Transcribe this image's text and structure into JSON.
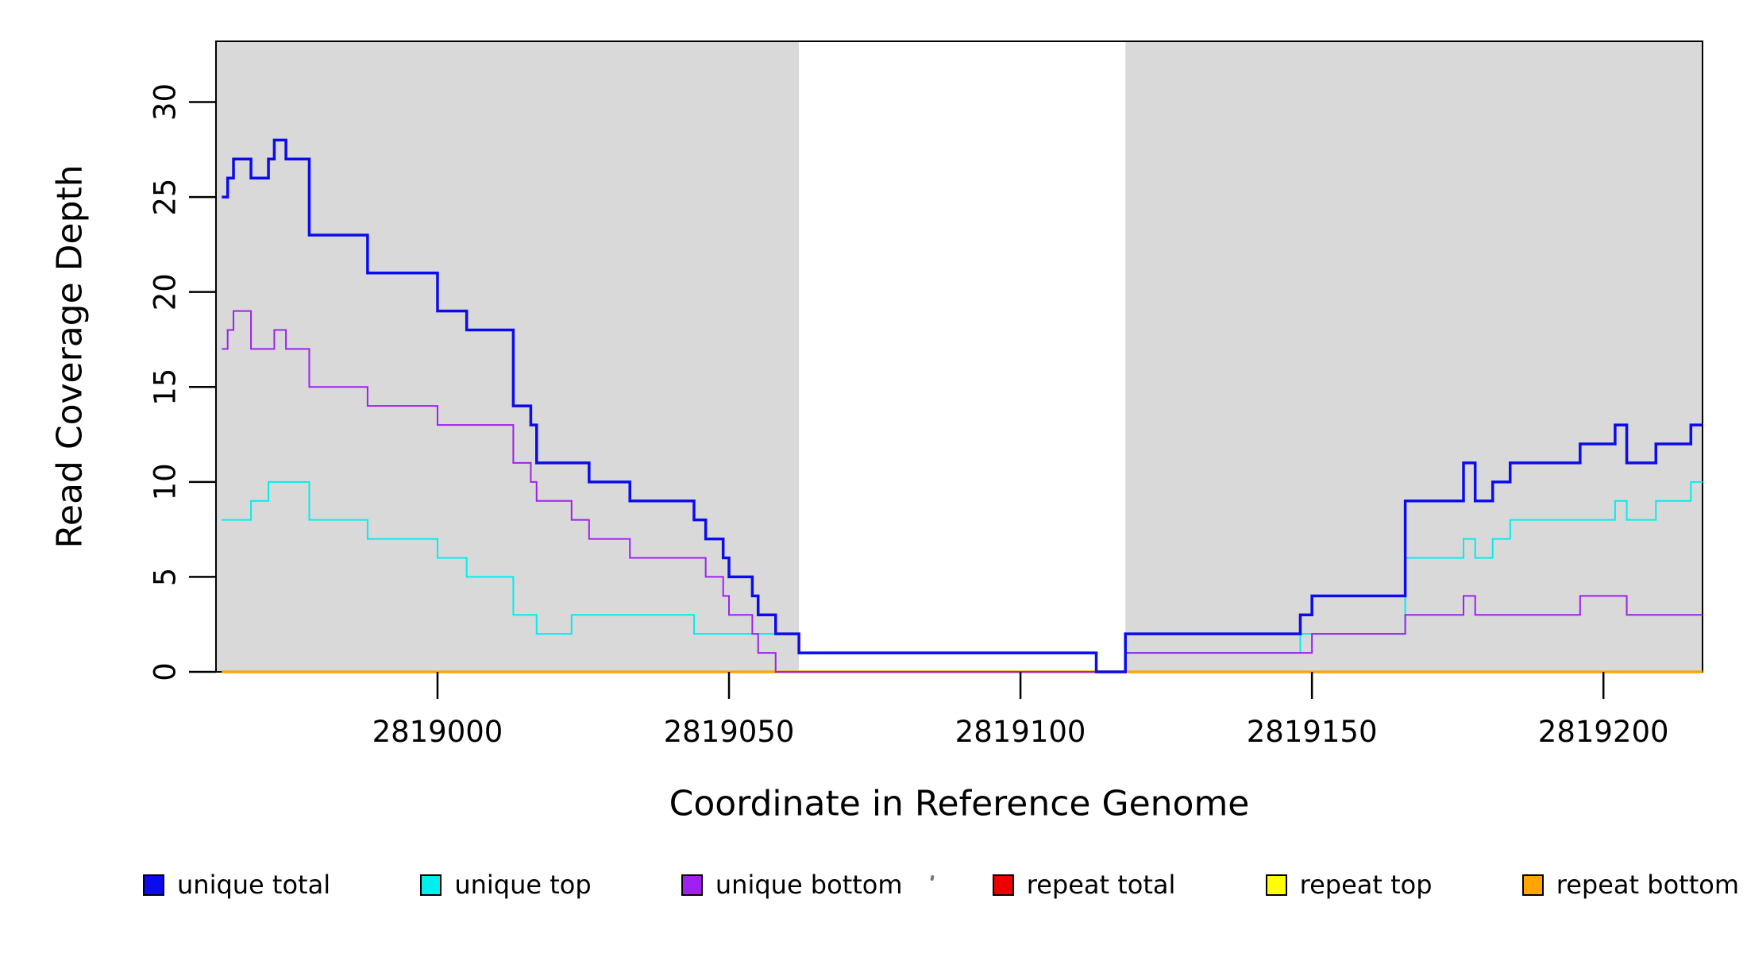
{
  "figure": {
    "y_axis": {
      "title": "Read Coverage Depth"
    },
    "x_axis": {
      "title": "Coordinate in Reference Genome"
    }
  },
  "legend": {
    "items": [
      {
        "label": "unique total",
        "color": "#0B0BEE"
      },
      {
        "label": "unique top",
        "color": "#00EEEE"
      },
      {
        "label": "unique bottom",
        "color": "#A020F0"
      },
      {
        "label": "repeat total",
        "color": "#EE0000"
      },
      {
        "label": "repeat top",
        "color": "#FFFF00"
      },
      {
        "label": "repeat bottom",
        "color": "#FFA500"
      }
    ]
  },
  "chart_data": {
    "type": "line",
    "subtype": "step-function-coverage",
    "title": "",
    "xlabel": "Coordinate in Reference Genome",
    "ylabel": "Read Coverage Depth",
    "x_range": [
      2818962,
      2819217
    ],
    "y_range": [
      0,
      33.2
    ],
    "x_ticks": [
      2819000,
      2819050,
      2819100,
      2819150,
      2819200
    ],
    "y_ticks": [
      0,
      5,
      10,
      15,
      20,
      25,
      30
    ],
    "grid": false,
    "legend_position": "bottom",
    "plot_background": "#ffffff",
    "shaded_region_color": "#D9D9D9",
    "shaded_regions": [
      [
        2818962,
        2819062
      ],
      [
        2819118,
        2819217
      ]
    ],
    "series_end_x": 2819217,
    "series": [
      {
        "name": "unique total",
        "color": "#0B0BEE",
        "line_width": 3.5,
        "draw_order": 6,
        "steps": [
          [
            2818963,
            25
          ],
          [
            2818964,
            26
          ],
          [
            2818965,
            27
          ],
          [
            2818968,
            26
          ],
          [
            2818971,
            27
          ],
          [
            2818972,
            28
          ],
          [
            2818974,
            27
          ],
          [
            2818978,
            23
          ],
          [
            2818988,
            21
          ],
          [
            2819000,
            19
          ],
          [
            2819005,
            18
          ],
          [
            2819013,
            14
          ],
          [
            2819016,
            13
          ],
          [
            2819017,
            11
          ],
          [
            2819026,
            10
          ],
          [
            2819033,
            9
          ],
          [
            2819044,
            8
          ],
          [
            2819046,
            7
          ],
          [
            2819049,
            6
          ],
          [
            2819050,
            5
          ],
          [
            2819054,
            4
          ],
          [
            2819055,
            3
          ],
          [
            2819058,
            2
          ],
          [
            2819062,
            1
          ],
          [
            2819113,
            0
          ],
          [
            2819118,
            2
          ],
          [
            2819148,
            3
          ],
          [
            2819150,
            4
          ],
          [
            2819166,
            9
          ],
          [
            2819176,
            11
          ],
          [
            2819178,
            9
          ],
          [
            2819181,
            10
          ],
          [
            2819184,
            11
          ],
          [
            2819196,
            12
          ],
          [
            2819202,
            13
          ],
          [
            2819204,
            11
          ],
          [
            2819209,
            12
          ],
          [
            2819215,
            13
          ]
        ]
      },
      {
        "name": "unique top",
        "color": "#00EEEE",
        "line_width": 2,
        "draw_order": 4,
        "steps": [
          [
            2818963,
            8
          ],
          [
            2818968,
            9
          ],
          [
            2818971,
            10
          ],
          [
            2818978,
            8
          ],
          [
            2818988,
            7
          ],
          [
            2819000,
            6
          ],
          [
            2819005,
            5
          ],
          [
            2819013,
            3
          ],
          [
            2819017,
            2
          ],
          [
            2819023,
            3
          ],
          [
            2819044,
            2
          ],
          [
            2819062,
            1
          ],
          [
            2819113,
            0
          ],
          [
            2819118,
            1
          ],
          [
            2819148,
            2
          ],
          [
            2819166,
            6
          ],
          [
            2819176,
            7
          ],
          [
            2819178,
            6
          ],
          [
            2819181,
            7
          ],
          [
            2819184,
            8
          ],
          [
            2819202,
            9
          ],
          [
            2819204,
            8
          ],
          [
            2819209,
            9
          ],
          [
            2819215,
            10
          ]
        ]
      },
      {
        "name": "unique bottom",
        "color": "#A020F0",
        "line_width": 2,
        "draw_order": 5,
        "steps": [
          [
            2818963,
            17
          ],
          [
            2818964,
            18
          ],
          [
            2818965,
            19
          ],
          [
            2818968,
            17
          ],
          [
            2818972,
            18
          ],
          [
            2818974,
            17
          ],
          [
            2818978,
            15
          ],
          [
            2818988,
            14
          ],
          [
            2819000,
            13
          ],
          [
            2819013,
            11
          ],
          [
            2819016,
            10
          ],
          [
            2819017,
            9
          ],
          [
            2819023,
            8
          ],
          [
            2819026,
            7
          ],
          [
            2819033,
            6
          ],
          [
            2819046,
            5
          ],
          [
            2819049,
            4
          ],
          [
            2819050,
            3
          ],
          [
            2819054,
            2
          ],
          [
            2819055,
            1
          ],
          [
            2819058,
            0
          ],
          [
            2819118,
            1
          ],
          [
            2819150,
            2
          ],
          [
            2819166,
            3
          ],
          [
            2819176,
            4
          ],
          [
            2819178,
            3
          ],
          [
            2819196,
            4
          ],
          [
            2819204,
            3
          ]
        ]
      },
      {
        "name": "repeat total",
        "color": "#EE0000",
        "line_width": 2,
        "draw_order": 1,
        "steps": [
          [
            2818963,
            0
          ]
        ]
      },
      {
        "name": "repeat top",
        "color": "#FFFF00",
        "line_width": 2,
        "draw_order": 2,
        "steps": [
          [
            2818963,
            0
          ]
        ]
      },
      {
        "name": "repeat bottom",
        "color": "#FFA500",
        "line_width": 3.5,
        "draw_order": 3,
        "steps": [
          [
            2818963,
            0
          ]
        ]
      }
    ]
  }
}
